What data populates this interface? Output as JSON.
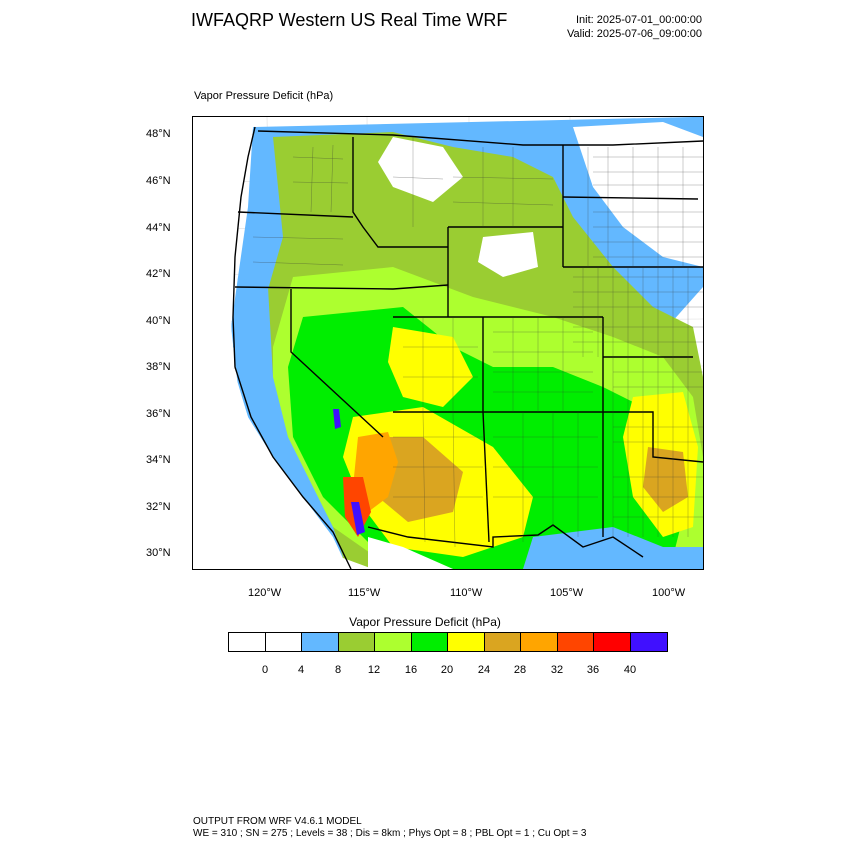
{
  "header": {
    "title": "IWFAQRP Western US Real Time WRF",
    "init": "Init: 2025-07-01_00:00:00",
    "valid": "Valid: 2025-07-06_09:00:00"
  },
  "map": {
    "subtitle": "Vapor Pressure Deficit   (hPa)",
    "lat_labels": [
      "48°N",
      "46°N",
      "44°N",
      "42°N",
      "40°N",
      "38°N",
      "36°N",
      "34°N",
      "32°N",
      "30°N"
    ],
    "lon_labels": [
      "120°W",
      "115°W",
      "110°W",
      "105°W",
      "100°W"
    ]
  },
  "legend": {
    "title": "Vapor Pressure Deficit  (hPa)",
    "colors": [
      "#ffffff",
      "#ffffff",
      "#63b8ff",
      "#9acd32",
      "#adff2f",
      "#00ee00",
      "#ffff00",
      "#daa520",
      "#ffa500",
      "#ff4500",
      "#ff0000",
      "#4010ff"
    ],
    "labels": [
      "0",
      "4",
      "8",
      "12",
      "16",
      "20",
      "24",
      "28",
      "32",
      "36",
      "40"
    ]
  },
  "footer": {
    "line1": "OUTPUT FROM WRF V4.6.1 MODEL",
    "line2": "WE = 310 ; SN = 275 ; Levels = 38 ; Dis = 8km ; Phys Opt = 8 ; PBL Opt = 1 ; Cu Opt = 3"
  }
}
